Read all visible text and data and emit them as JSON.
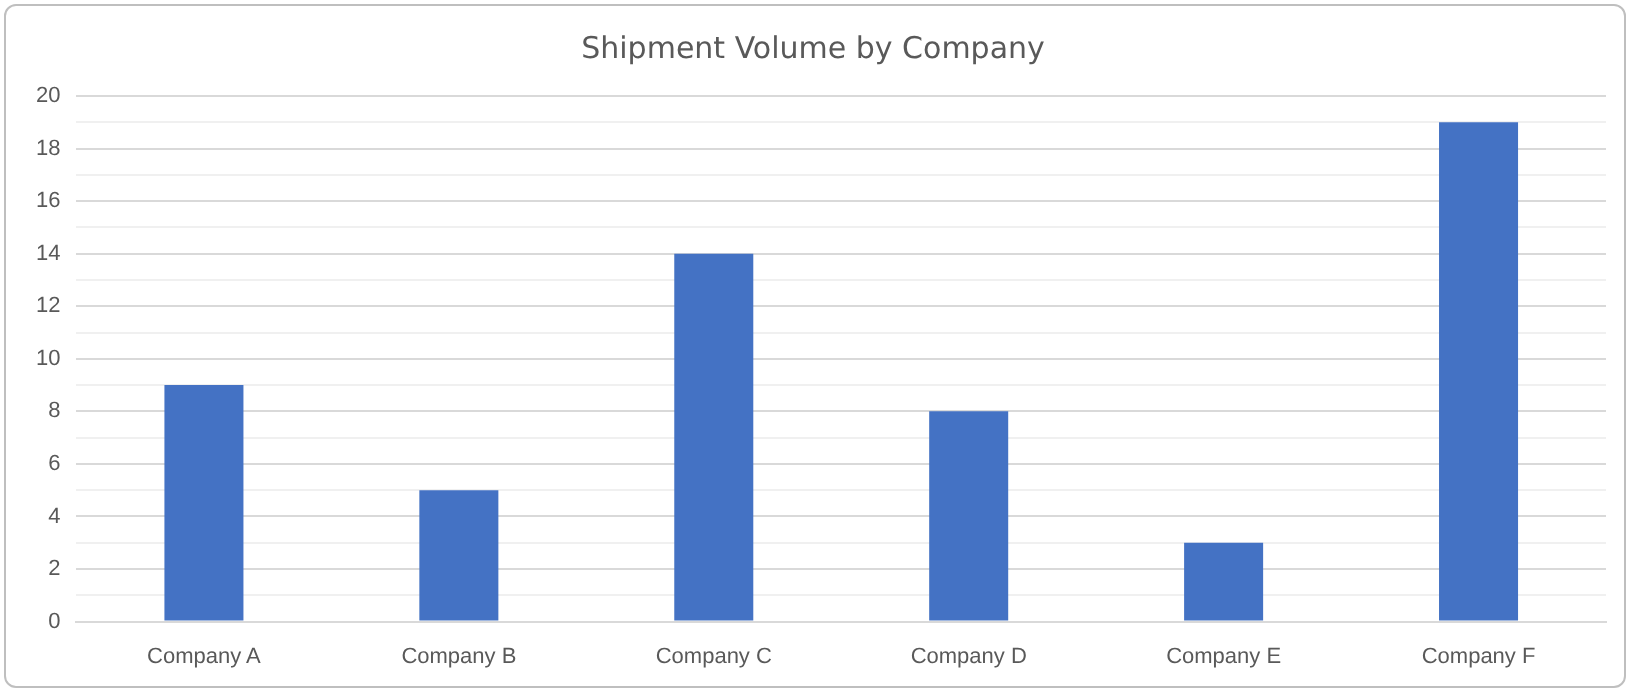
{
  "chart_data": {
    "type": "bar",
    "title": "Shipment Volume by Company",
    "categories": [
      "Company A",
      "Company B",
      "Company C",
      "Company D",
      "Company E",
      "Company F"
    ],
    "values": [
      9,
      5,
      14,
      8,
      3,
      19
    ],
    "color": "#4472c4",
    "ylim": [
      0,
      20
    ],
    "yticks": [
      0,
      {
        "value": 1,
        "label": null
      },
      2,
      {
        "value": 3,
        "label": null
      },
      4,
      {
        "value": 5,
        "label": null
      },
      6,
      {
        "value": 7,
        "label": null
      },
      8,
      {
        "value": 9,
        "label": null
      },
      10,
      {
        "value": 11,
        "label": null
      },
      12,
      {
        "value": 13,
        "label": null
      },
      14,
      {
        "value": 15,
        "label": null
      },
      16,
      {
        "value": 17,
        "label": null
      },
      18,
      {
        "value": 19,
        "label": null
      },
      20
    ],
    "grid": true,
    "legend": false
  }
}
